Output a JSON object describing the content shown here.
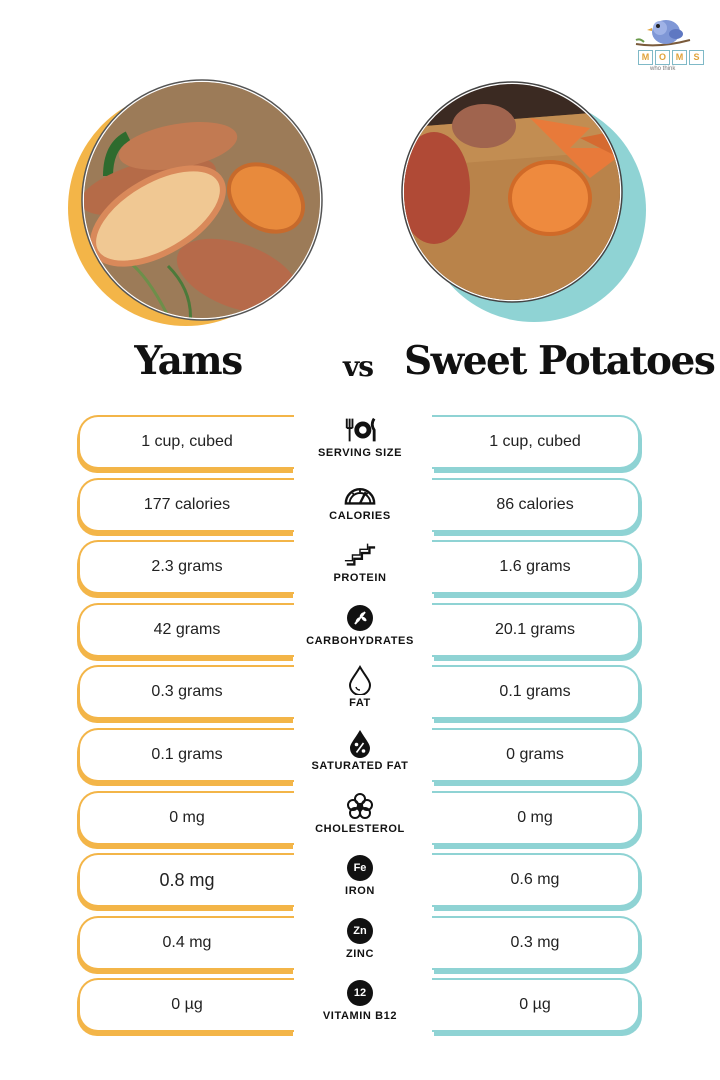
{
  "logo": {
    "letters": [
      "M",
      "O",
      "M",
      "S"
    ],
    "tagline": "who think"
  },
  "titles": {
    "left": "Yams",
    "vs": "vs",
    "right": "Sweet Potatoes"
  },
  "colors": {
    "yam_accent": "#f3b548",
    "sweet_potato_accent": "#8fd3d4"
  },
  "rows": [
    {
      "label": "SERVING SIZE",
      "icon": "utensils-plate-icon",
      "yam": "1 cup, cubed",
      "sweet_potato": "1 cup, cubed"
    },
    {
      "label": "CALORIES",
      "icon": "gauge-icon",
      "yam": "177 calories",
      "sweet_potato": "86 calories"
    },
    {
      "label": "PROTEIN",
      "icon": "protein-chain-icon",
      "yam": "2.3 grams",
      "sweet_potato": "1.6 grams"
    },
    {
      "label": "CARBOHYDRATES",
      "icon": "grain-icon",
      "yam": "42 grams",
      "sweet_potato": "20.1 grams"
    },
    {
      "label": "FAT",
      "icon": "drop-icon",
      "yam": "0.3 grams",
      "sweet_potato": "0.1 grams"
    },
    {
      "label": "SATURATED FAT",
      "icon": "percent-drop-icon",
      "yam": "0.1 grams",
      "sweet_potato": "0 grams"
    },
    {
      "label": "CHOLESTEROL",
      "icon": "molecule-icon",
      "yam": "0 mg",
      "sweet_potato": "0 mg"
    },
    {
      "label": "IRON",
      "icon": "fe-badge-icon",
      "badge": "Fe",
      "yam": "0.8 mg",
      "sweet_potato": "0.6 mg"
    },
    {
      "label": "ZINC",
      "icon": "zn-badge-icon",
      "badge": "Zn",
      "yam": "0.4 mg",
      "sweet_potato": "0.3 mg"
    },
    {
      "label": "VITAMIN B12",
      "icon": "b12-badge-icon",
      "badge": "12",
      "yam": "0 µg",
      "sweet_potato": "0 µg"
    }
  ]
}
